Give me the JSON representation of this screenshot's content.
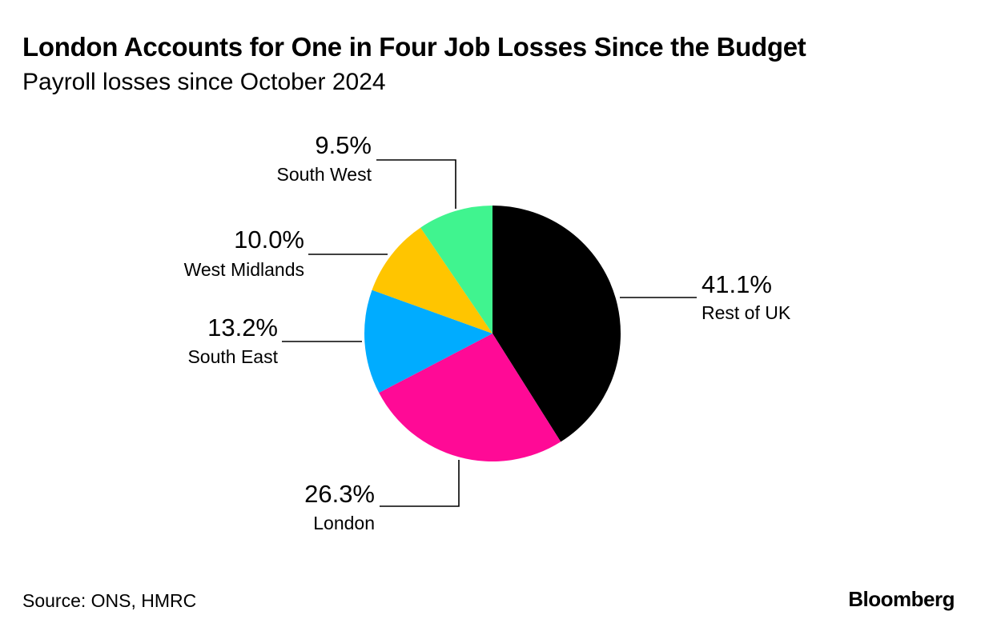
{
  "title": "London Accounts for One in Four Job Losses Since the Budget",
  "subtitle": "Payroll losses since October 2024",
  "source": "Source: ONS, HMRC",
  "brand": "Bloomberg",
  "chart_data": {
    "type": "pie",
    "title": "London Accounts for One in Four Job Losses Since the Budget",
    "subtitle": "Payroll losses since October 2024",
    "start": "12 o'clock, clockwise",
    "slices": [
      {
        "label": "Rest of UK",
        "value": 41.1,
        "display": "41.1%",
        "color": "#000000"
      },
      {
        "label": "London",
        "value": 26.3,
        "display": "26.3%",
        "color": "#ff0a96"
      },
      {
        "label": "South East",
        "value": 13.2,
        "display": "13.2%",
        "color": "#00acff"
      },
      {
        "label": "West Midlands",
        "value": 10.0,
        "display": "10.0%",
        "color": "#ffc500"
      },
      {
        "label": "South West",
        "value": 9.5,
        "display": "9.5%",
        "color": "#40f48f"
      }
    ]
  }
}
